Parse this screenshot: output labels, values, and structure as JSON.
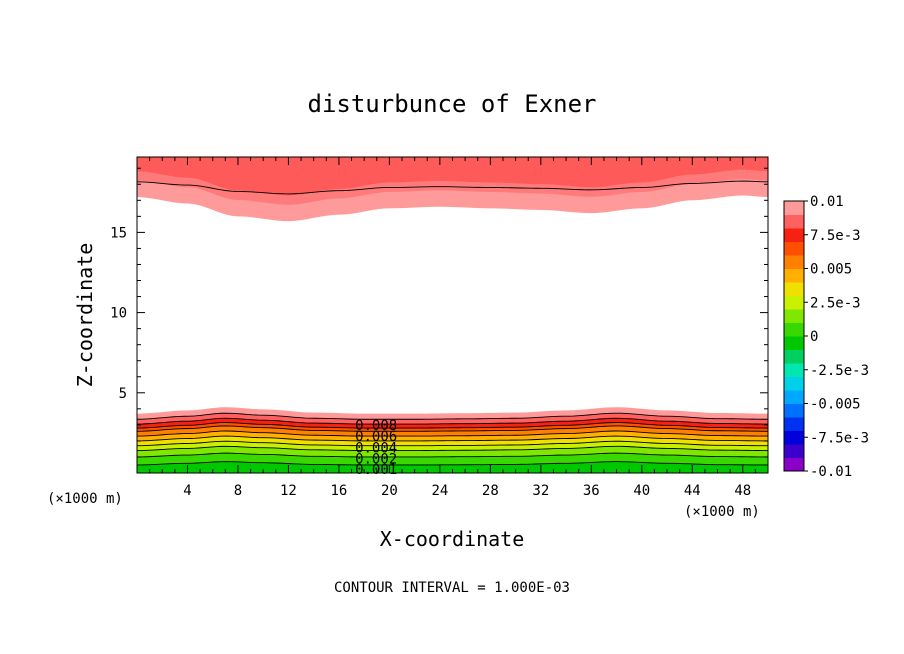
{
  "chart_data": {
    "type": "contour",
    "title": "disturbunce of Exner",
    "xlabel": "X-coordinate",
    "ylabel": "Z-coordinate",
    "x_unit_left": "(×1000 m)",
    "x_unit_right": "(×1000 m)",
    "footer": "CONTOUR INTERVAL = 1.000E-03",
    "xlim": [
      0,
      50
    ],
    "ylim": [
      0,
      19.7
    ],
    "x_ticks": [
      4,
      8,
      12,
      16,
      20,
      24,
      28,
      32,
      36,
      40,
      44,
      48
    ],
    "x_tick_labels": [
      "4",
      "8",
      "12",
      "16",
      "20",
      "24",
      "28",
      "32",
      "36",
      "40",
      "44",
      "48"
    ],
    "y_ticks": [
      5,
      10,
      15
    ],
    "y_tick_labels": [
      "5",
      "10",
      "15"
    ],
    "contour_interval": 0.001,
    "contour_labels": [
      {
        "text": "0.008",
        "x": 18,
        "y": 3.0
      },
      {
        "text": "0.006",
        "x": 18,
        "y": 2.3
      },
      {
        "text": "0.004",
        "x": 18,
        "y": 1.6
      },
      {
        "text": "0.002",
        "x": 18,
        "y": 0.9
      },
      {
        "text": "0.001",
        "x": 18,
        "y": 0.25
      }
    ],
    "colorbar": {
      "min": -0.01,
      "max": 0.01,
      "tick_labels": [
        "0.01",
        "7.5e-3",
        "0.005",
        "2.5e-3",
        "0",
        "-2.5e-3",
        "-0.005",
        "-7.5e-3",
        "-0.01"
      ],
      "colors": [
        "#8a00c8",
        "#3c00cc",
        "#0000dd",
        "#0030f0",
        "#0070ff",
        "#00a8ff",
        "#00d0e8",
        "#00e8b0",
        "#00d060",
        "#00c800",
        "#38d800",
        "#80e800",
        "#c8f000",
        "#f0e000",
        "#ffb000",
        "#ff8000",
        "#ff5000",
        "#f82010",
        "#ff6060",
        "#ff9a9a"
      ]
    },
    "bottom_band": {
      "x_profile": [
        0,
        4,
        7,
        10,
        14,
        18,
        22,
        26,
        30,
        34,
        38,
        42,
        46,
        50
      ],
      "bump": [
        0,
        0.15,
        0.3,
        0.2,
        0.05,
        0,
        0,
        0.02,
        0.05,
        0.15,
        0.3,
        0.15,
        0.03,
        0
      ],
      "levels": [
        {
          "z": 0.5,
          "color": "#00c800"
        },
        {
          "z": 1.0,
          "color": "#38d800"
        },
        {
          "z": 1.4,
          "color": "#80e800"
        },
        {
          "z": 1.7,
          "color": "#c8f000"
        },
        {
          "z": 2.0,
          "color": "#f0e000"
        },
        {
          "z": 2.3,
          "color": "#ffb000"
        },
        {
          "z": 2.6,
          "color": "#ff8000"
        },
        {
          "z": 2.8,
          "color": "#ff5000"
        },
        {
          "z": 3.05,
          "color": "#f82010"
        },
        {
          "z": 3.35,
          "color": "#ff6060"
        },
        {
          "z": 3.7,
          "color": "#ff9a9a"
        }
      ]
    },
    "top_band": {
      "x_profile": [
        0,
        4,
        8,
        12,
        16,
        20,
        24,
        28,
        32,
        36,
        40,
        44,
        48,
        50
      ],
      "bottom_edge": [
        17.2,
        16.8,
        16.0,
        15.7,
        16.1,
        16.5,
        16.6,
        16.5,
        16.4,
        16.2,
        16.5,
        17.0,
        17.3,
        17.2
      ],
      "levels": [
        {
          "offset": 0.0,
          "color": "#ff9a9a"
        },
        {
          "offset": 1.2,
          "color": "#ff7a7a"
        },
        {
          "offset": 2.3,
          "color": "#ff5a5a"
        }
      ]
    }
  }
}
